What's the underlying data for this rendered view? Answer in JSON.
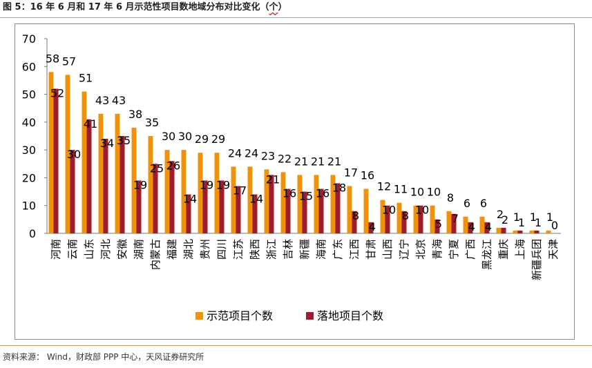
{
  "title": {
    "prefix": "图 5：16 年 6 月和 17 年 6 月示范性项目数地域分布对比变化（",
    "unit": "个",
    "suffix": "）"
  },
  "source": "资料来源：  Wind，财政部 PPP 中心，天风证券研究所",
  "chart_data": {
    "type": "bar",
    "title": "",
    "xlabel": "",
    "ylabel": "",
    "ylim": [
      0,
      70
    ],
    "yticks": [
      0,
      10,
      20,
      30,
      40,
      50,
      60,
      70
    ],
    "grid": false,
    "legend_position": "bottom",
    "categories": [
      "河南",
      "云南",
      "山东",
      "河北",
      "安徽",
      "湖南",
      "内蒙古",
      "福建",
      "湖北",
      "贵州",
      "四川",
      "江苏",
      "陕西",
      "浙江",
      "吉林",
      "新疆",
      "海南",
      "广东",
      "江西",
      "甘肃",
      "山西",
      "辽宁",
      "北京",
      "青海",
      "宁夏",
      "广西",
      "黑龙江",
      "重庆",
      "上海",
      "新疆兵团",
      "天津"
    ],
    "series": [
      {
        "name": "示范项目个数",
        "color": "#f0920a",
        "values": [
          58,
          57,
          51,
          43,
          43,
          38,
          35,
          30,
          30,
          29,
          29,
          24,
          24,
          23,
          22,
          21,
          21,
          21,
          17,
          16,
          12,
          11,
          10,
          10,
          8,
          6,
          6,
          2,
          1,
          1,
          1
        ]
      },
      {
        "name": "落地项目个数",
        "color": "#9e1b32",
        "values": [
          52,
          30,
          41,
          34,
          35,
          19,
          25,
          26,
          14,
          19,
          19,
          17,
          14,
          21,
          16,
          15,
          16,
          18,
          8,
          4,
          10,
          8,
          10,
          5,
          7,
          4,
          4,
          2,
          1,
          1,
          0
        ]
      }
    ]
  }
}
